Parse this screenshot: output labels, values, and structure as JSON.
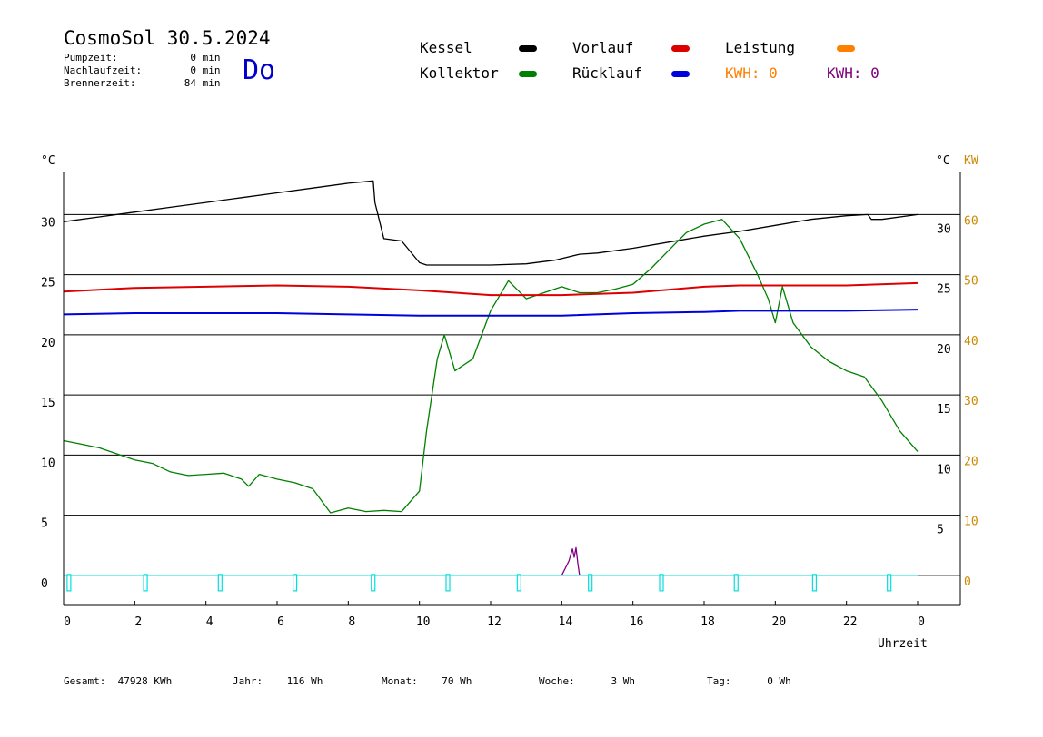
{
  "header": {
    "title": "CosmoSol 30.5.2024",
    "day": "Do",
    "info": [
      {
        "label": "Pumpzeit:",
        "value": "0",
        "unit": "min"
      },
      {
        "label": "Nachlaufzeit:",
        "value": "0",
        "unit": "min"
      },
      {
        "label": "Brennerzeit:",
        "value": "84",
        "unit": "min"
      }
    ]
  },
  "legend": {
    "kessel": "Kessel",
    "kollektor": "Kollektor",
    "vorlauf": "Vorlauf",
    "ruecklauf": "Rücklauf",
    "leistung": "Leistung",
    "kwh1": "KWH: 0",
    "kwh2": "KWH: 0"
  },
  "colors": {
    "kessel": "#000000",
    "kollektor": "#008000",
    "vorlauf": "#dd0000",
    "ruecklauf": "#0000dd",
    "leistung": "#ff8000",
    "kwh2": "#800080",
    "pumpe": "#00e0e0",
    "kw_axis": "#cc8800"
  },
  "axes": {
    "left_unit": "°C",
    "right_unit": "°C",
    "right_kw_unit": "KW",
    "xlabel": "Uhrzeit"
  },
  "footer": {
    "gesamt_label": "Gesamt:",
    "gesamt_value": "47928 KWh",
    "jahr_label": "Jahr:",
    "jahr_value": "116 Wh",
    "monat_label": "Monat:",
    "monat_value": "70 Wh",
    "woche_label": "Woche:",
    "woche_value": "3 Wh",
    "tag_label": "Tag:",
    "tag_value": "0 Wh"
  },
  "chart_data": {
    "type": "line",
    "x_unit": "h",
    "xlim": [
      0,
      24
    ],
    "ylim": [
      -2.5,
      33.5
    ],
    "kw_lim": [
      -5,
      67
    ],
    "x_ticks": [
      "0",
      "2",
      "4",
      "6",
      "8",
      "10",
      "12",
      "14",
      "16",
      "18",
      "20",
      "22",
      "0"
    ],
    "y_left_ticks": [
      0,
      5,
      10,
      15,
      20,
      25,
      30
    ],
    "y_right_ticks": [
      5,
      10,
      15,
      20,
      25,
      30
    ],
    "kw_ticks": [
      0,
      10,
      20,
      30,
      40,
      50,
      60
    ],
    "grid_y": [
      5,
      10,
      15,
      20,
      25,
      30
    ],
    "series": [
      {
        "name": "Kessel",
        "x": [
          0,
          1,
          2,
          3,
          4,
          5,
          6,
          7,
          8,
          8.7,
          8.75,
          9.0,
          9.5,
          10.0,
          10.2,
          11,
          12,
          13,
          13.8,
          14.5,
          15,
          16,
          17,
          18,
          19,
          20,
          21,
          22,
          22.6,
          22.7,
          23,
          24
        ],
        "values": [
          29.4,
          29.8,
          30.2,
          30.6,
          31.0,
          31.4,
          31.8,
          32.2,
          32.6,
          32.8,
          31.0,
          28.0,
          27.8,
          26.0,
          25.8,
          25.8,
          25.8,
          25.9,
          26.2,
          26.7,
          26.8,
          27.2,
          27.7,
          28.2,
          28.6,
          29.1,
          29.6,
          29.9,
          30.0,
          29.6,
          29.6,
          30.0
        ]
      },
      {
        "name": "Kollektor",
        "x": [
          0,
          0.5,
          1,
          1.3,
          2,
          2.5,
          3,
          3.5,
          4,
          4.5,
          5,
          5.2,
          5.5,
          6,
          6.5,
          7,
          7.3,
          7.5,
          8,
          8.5,
          9,
          9.5,
          10,
          10.2,
          10.5,
          10.7,
          11,
          11.5,
          12,
          12.5,
          13,
          13.5,
          14,
          14.5,
          15,
          15.5,
          16,
          16.5,
          17,
          17.5,
          18,
          18.5,
          19,
          19.5,
          19.8,
          20,
          20.2,
          20.5,
          21,
          21.5,
          22,
          22.5,
          23,
          23.5,
          24
        ],
        "values": [
          11.2,
          10.9,
          10.6,
          10.3,
          9.6,
          9.3,
          8.6,
          8.3,
          8.4,
          8.5,
          8.0,
          7.4,
          8.4,
          8.0,
          7.7,
          7.2,
          6.0,
          5.2,
          5.6,
          5.3,
          5.4,
          5.3,
          7.0,
          12.0,
          18.0,
          20.0,
          17.0,
          18.0,
          22.0,
          24.5,
          23.0,
          23.5,
          24.0,
          23.5,
          23.5,
          23.8,
          24.2,
          25.5,
          27.0,
          28.5,
          29.2,
          29.6,
          28.0,
          25.0,
          23.0,
          21.0,
          24.0,
          21.0,
          19.0,
          17.8,
          17.0,
          16.5,
          14.5,
          12.0,
          10.3
        ]
      },
      {
        "name": "Vorlauf",
        "x": [
          0,
          2,
          4,
          6,
          8,
          10,
          12,
          14,
          16,
          18,
          19,
          20,
          22,
          24
        ],
        "values": [
          23.6,
          23.9,
          24.0,
          24.1,
          24.0,
          23.7,
          23.3,
          23.3,
          23.5,
          24.0,
          24.1,
          24.1,
          24.1,
          24.3
        ]
      },
      {
        "name": "Rücklauf",
        "x": [
          0,
          2,
          4,
          6,
          8,
          10,
          12,
          14,
          16,
          18,
          19,
          20,
          22,
          24
        ],
        "values": [
          21.7,
          21.8,
          21.8,
          21.8,
          21.7,
          21.6,
          21.6,
          21.6,
          21.8,
          21.9,
          22.0,
          22.0,
          22.0,
          22.1
        ]
      },
      {
        "name": "Leistung",
        "x": [
          0,
          24
        ],
        "values": [
          0,
          0
        ]
      },
      {
        "name": "KWH",
        "x": [
          14.0,
          14.2,
          14.3,
          14.35,
          14.4,
          14.45,
          14.5
        ],
        "values": [
          0,
          1.2,
          2.2,
          1.5,
          2.3,
          1.0,
          0
        ]
      }
    ],
    "pump_marks_x": [
      0.15,
      2.3,
      4.4,
      6.5,
      8.7,
      10.8,
      12.8,
      14.8,
      16.8,
      18.9,
      21.1,
      23.2
    ]
  }
}
